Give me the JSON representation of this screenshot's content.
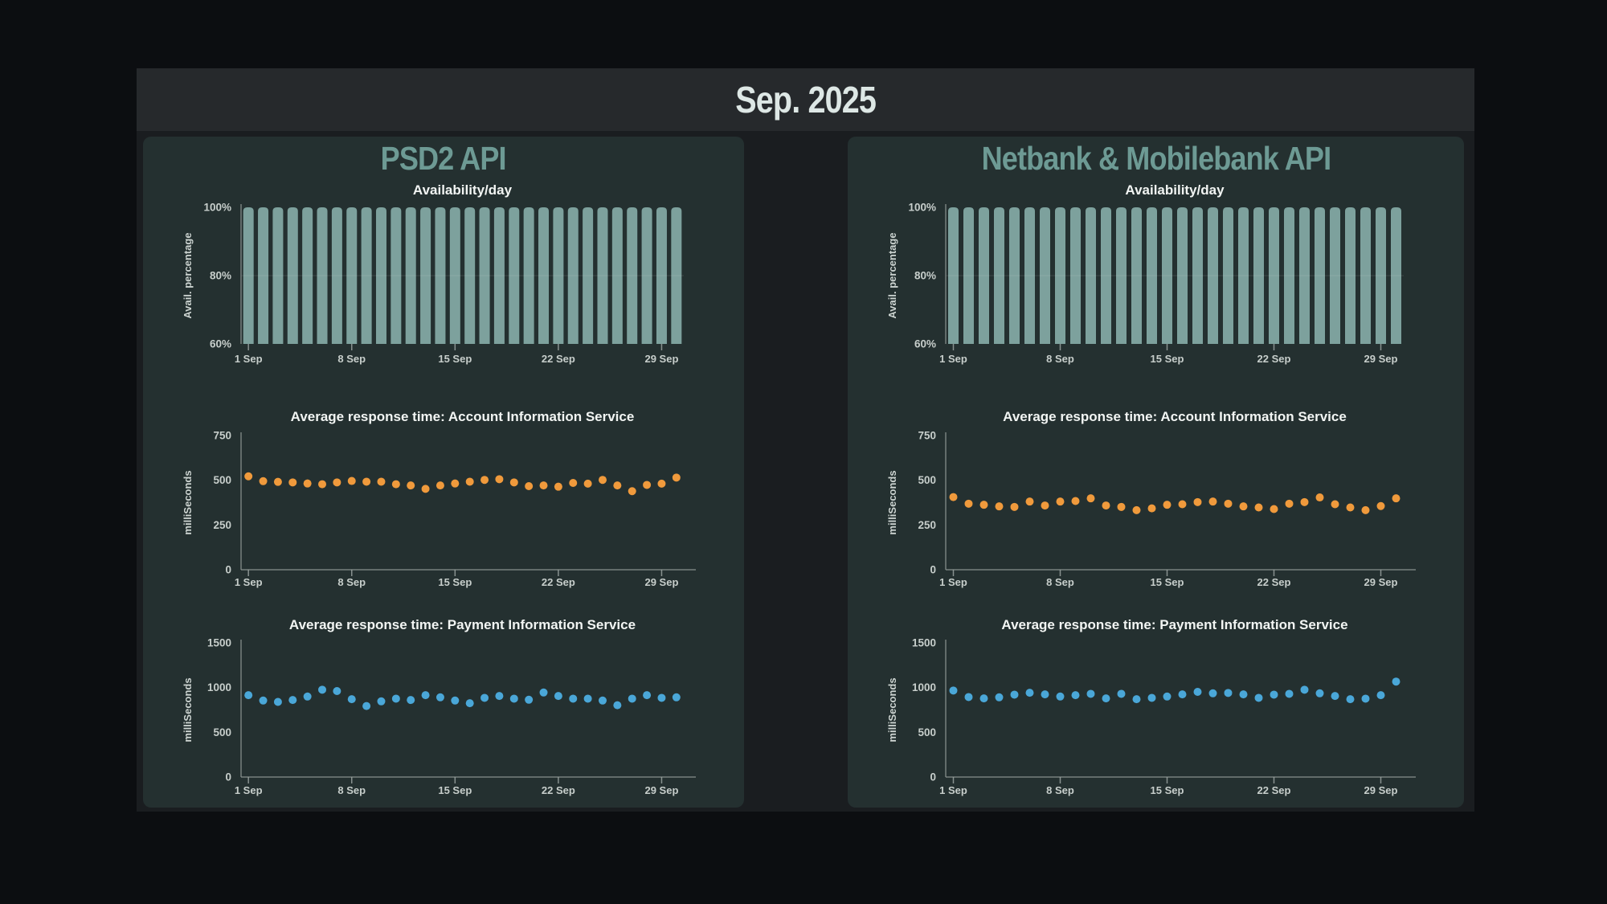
{
  "page_title": "Sep. 2025",
  "panels": [
    {
      "title": "PSD2 API"
    },
    {
      "title": "Netbank & Mobilebank API"
    }
  ],
  "x_axis": {
    "days": 30,
    "tick_days": [
      1,
      8,
      15,
      22,
      29
    ],
    "tick_labels": [
      "1 Sep",
      "8 Sep",
      "15 Sep",
      "22 Sep",
      "29 Sep"
    ]
  },
  "colors": {
    "page_bg": "#0c0e11",
    "dash_bg": "#1a1d20",
    "band_bg": "#26292c",
    "panel_bg": "#243030",
    "panel_title": "#6d9a94",
    "bar_fill": "#7da19d",
    "ais_dot": "#f09a3c",
    "pis_dot": "#4aa7d8",
    "axis": "#8b9492",
    "title_text": "#dde7e5",
    "chart_title_text": "#f2f5f3",
    "tick_text": "#c7cecb"
  },
  "chart_data": [
    {
      "panel": "PSD2 API",
      "type": "bar",
      "title": "Availability/day",
      "ylabel": "Avail. percentage",
      "ymin": 60,
      "ymax": 100,
      "yticks": [
        {
          "v": 100,
          "label": "100%"
        },
        {
          "v": 80,
          "label": "80%"
        },
        {
          "v": 60,
          "label": "60%"
        }
      ],
      "gridlines": [
        80
      ],
      "color_key": "bar_fill",
      "unit": "%",
      "values": [
        100,
        100,
        100,
        100,
        100,
        100,
        100,
        100,
        100,
        100,
        100,
        100,
        100,
        100,
        100,
        100,
        100,
        100,
        100,
        100,
        100,
        100,
        100,
        100,
        100,
        100,
        100,
        100,
        100,
        100
      ]
    },
    {
      "panel": "PSD2 API",
      "type": "scatter",
      "title": "Average response time: Account Information Service",
      "ylabel": "milliSeconds",
      "ymin": 0,
      "ymax": 750,
      "yticks": [
        {
          "v": 750,
          "label": "750"
        },
        {
          "v": 500,
          "label": "500"
        },
        {
          "v": 250,
          "label": "250"
        },
        {
          "v": 0,
          "label": "0"
        }
      ],
      "color_key": "ais_dot",
      "unit": "ms",
      "values": [
        522,
        495,
        491,
        488,
        482,
        478,
        488,
        496,
        492,
        492,
        478,
        471,
        452,
        471,
        482,
        492,
        502,
        506,
        488,
        467,
        471,
        464,
        485,
        481,
        502,
        471,
        439,
        474,
        481,
        515
      ]
    },
    {
      "panel": "PSD2 API",
      "type": "scatter",
      "title": "Average response time: Payment Information Service",
      "ylabel": "milliSeconds",
      "ymin": 0,
      "ymax": 1500,
      "yticks": [
        {
          "v": 1500,
          "label": "1500"
        },
        {
          "v": 1000,
          "label": "1000"
        },
        {
          "v": 500,
          "label": "500"
        },
        {
          "v": 0,
          "label": "0"
        }
      ],
      "color_key": "pis_dot",
      "unit": "ms",
      "values": [
        915,
        855,
        840,
        861,
        900,
        976,
        961,
        870,
        794,
        846,
        876,
        861,
        915,
        891,
        855,
        825,
        885,
        906,
        876,
        864,
        945,
        906,
        876,
        876,
        855,
        803,
        876,
        915,
        885,
        891
      ]
    },
    {
      "panel": "Netbank & Mobilebank API",
      "type": "bar",
      "title": "Availability/day",
      "ylabel": "Avail. percentage",
      "ymin": 60,
      "ymax": 100,
      "yticks": [
        {
          "v": 100,
          "label": "100%"
        },
        {
          "v": 80,
          "label": "80%"
        },
        {
          "v": 60,
          "label": "60%"
        }
      ],
      "gridlines": [
        80
      ],
      "color_key": "bar_fill",
      "unit": "%",
      "values": [
        100,
        100,
        100,
        100,
        100,
        100,
        100,
        100,
        100,
        100,
        100,
        100,
        100,
        100,
        100,
        100,
        100,
        100,
        100,
        100,
        100,
        100,
        100,
        100,
        100,
        100,
        100,
        100,
        100,
        100
      ]
    },
    {
      "panel": "Netbank & Mobilebank API",
      "type": "scatter",
      "title": "Average response time: Account Information Service",
      "ylabel": "milliSeconds",
      "ymin": 0,
      "ymax": 750,
      "yticks": [
        {
          "v": 750,
          "label": "750"
        },
        {
          "v": 500,
          "label": "500"
        },
        {
          "v": 250,
          "label": "250"
        },
        {
          "v": 0,
          "label": "0"
        }
      ],
      "color_key": "ais_dot",
      "unit": "ms",
      "values": [
        406,
        369,
        363,
        354,
        351,
        381,
        359,
        381,
        384,
        399,
        359,
        351,
        333,
        343,
        363,
        366,
        378,
        381,
        369,
        354,
        348,
        339,
        369,
        378,
        404,
        366,
        348,
        333,
        356,
        399
      ]
    },
    {
      "panel": "Netbank & Mobilebank API",
      "type": "scatter",
      "title": "Average response time: Payment Information Service",
      "ylabel": "milliSeconds",
      "ymin": 0,
      "ymax": 1500,
      "yticks": [
        {
          "v": 1500,
          "label": "1500"
        },
        {
          "v": 1000,
          "label": "1000"
        },
        {
          "v": 500,
          "label": "500"
        },
        {
          "v": 0,
          "label": "0"
        }
      ],
      "color_key": "pis_dot",
      "unit": "ms",
      "values": [
        967,
        894,
        879,
        891,
        921,
        942,
        924,
        900,
        915,
        930,
        879,
        930,
        870,
        885,
        900,
        924,
        952,
        936,
        940,
        924,
        885,
        921,
        930,
        976,
        936,
        906,
        870,
        876,
        915,
        1067
      ]
    }
  ]
}
